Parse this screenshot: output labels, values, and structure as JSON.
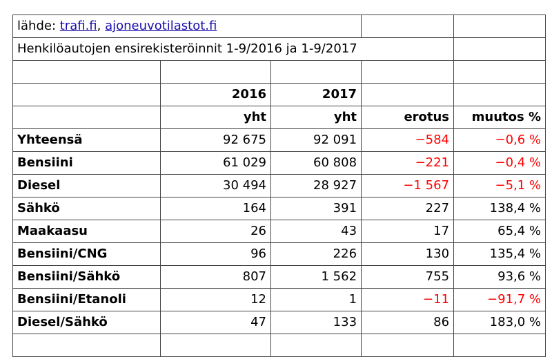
{
  "source": {
    "prefix": "lähde:",
    "links": [
      "trafi.fi",
      "ajoneuvotilastot.fi"
    ],
    "separator": ","
  },
  "title": "Henkilöautojen ensirekisteröinnit 1-9/2016 ja 1-9/2017",
  "header": {
    "years": [
      "2016",
      "2017"
    ],
    "units": [
      "yht",
      "yht"
    ],
    "columns": [
      "erotus",
      "muutos %"
    ]
  },
  "negative_color": "#ff0000",
  "rows": [
    [
      "Yhteensä",
      "92 675",
      "92 091",
      "−584",
      "−0,6 %"
    ],
    [
      "Bensiini",
      "61 029",
      "60 808",
      "−221",
      "−0,4 %"
    ],
    [
      "Diesel",
      "30 494",
      "28 927",
      "−1 567",
      "−5,1 %"
    ],
    [
      "Sähkö",
      "164",
      "391",
      "227",
      "138,4 %"
    ],
    [
      "Maakaasu",
      "26",
      "43",
      "17",
      "65,4 %"
    ],
    [
      "Bensiini/CNG",
      "96",
      "226",
      "130",
      "135,4 %"
    ],
    [
      "Bensiini/Sähkö",
      "807",
      "1 562",
      "755",
      "93,6 %"
    ],
    [
      "Bensiini/Etanoli",
      "12",
      "1",
      "−11",
      "−91,7 %"
    ],
    [
      "Diesel/Sähkö",
      "47",
      "133",
      "86",
      "183,0 %"
    ]
  ]
}
